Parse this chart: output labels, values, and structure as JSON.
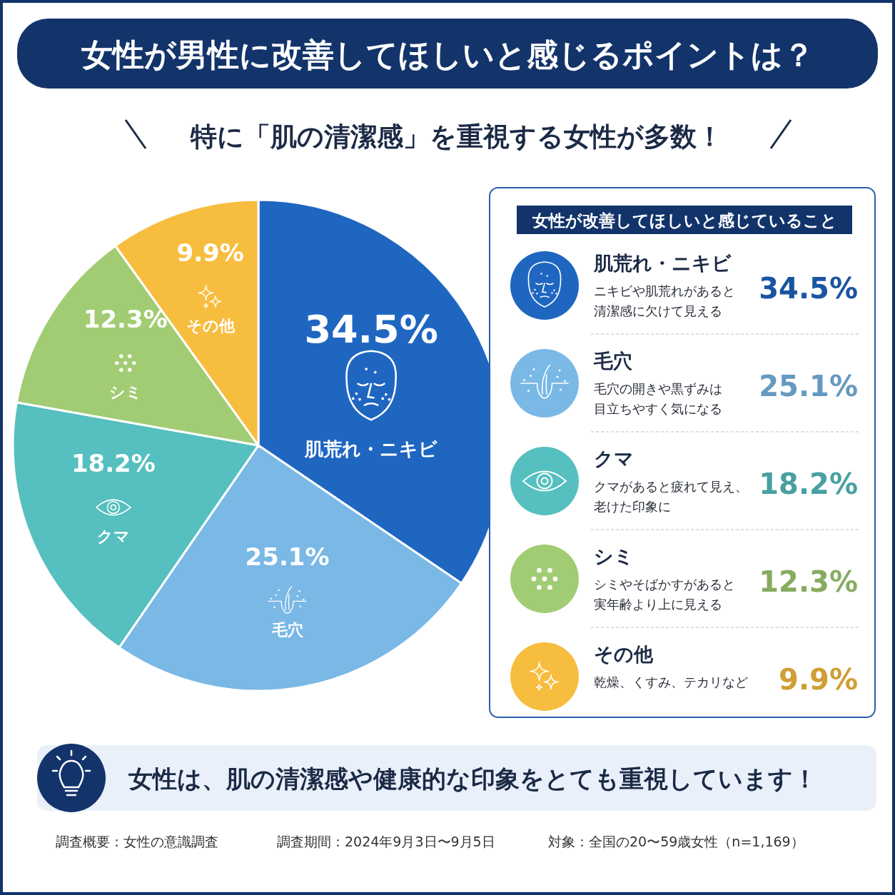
{
  "chart_data": {
    "type": "pie",
    "title": "女性が男性に改善してほしいと感じるポイントは？",
    "subtitle": "特に「肌の清潔感」を重視する女性が多数！",
    "legend_title": "女性が改善してほしいと感じていること",
    "value_labels": [
      "34.5%",
      "25.1%",
      "18.2%",
      "12.3%",
      "9.9%"
    ],
    "categories": [
      "肌荒れ・ニキビ",
      "毛穴",
      "クマ",
      "シミ",
      "その他"
    ],
    "values": [
      34.5,
      25.1,
      18.2,
      12.3,
      9.9
    ],
    "colors": [
      "#1f66c1",
      "#7ab8e6",
      "#56bfbf",
      "#a2cc73",
      "#f7bd3f"
    ],
    "annotations": [
      "ニキビや肌荒れがあると清潔感に欠けて見える",
      "毛穴の開きや黒ずみは目立ちやすく気になる",
      "クマがあると疲れて見え、老けた印象に",
      "シミやそばかすがあると実年齢より上に見える",
      "乾燥、くすみ、テカリなど",
      "女性は、肌の清潔感や健康的な印象をとても重視しています！",
      "調査概要：女性の意識調査",
      "調査期間：2024年9月3日〜9月5日",
      "対象：全国の20〜59歳女性（n=1,169）"
    ]
  }
}
